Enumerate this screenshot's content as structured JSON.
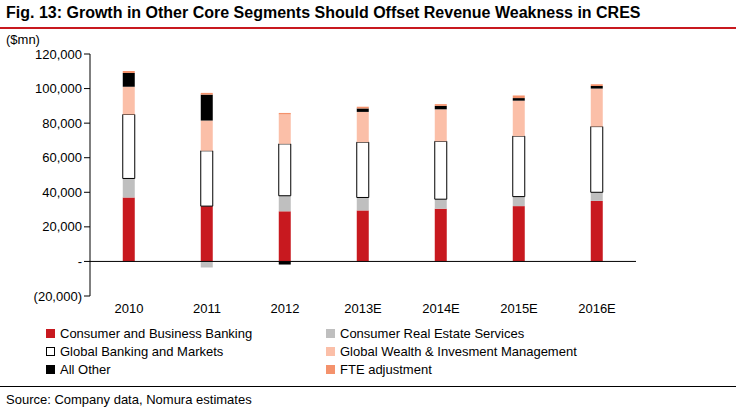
{
  "chart_data": {
    "type": "bar",
    "title": "Fig. 13: Growth in Other Core Segments Should Offset Revenue Weakness in CRES",
    "subtitle": "($mn)",
    "source": "Source: Company data, Nomura estimates",
    "stacked": true,
    "grid": false,
    "legend": "bottom",
    "categories": [
      "2010",
      "2011",
      "2012",
      "2013E",
      "2014E",
      "2015E",
      "2016E"
    ],
    "ylim": [
      -20000,
      120000
    ],
    "yticks": [
      {
        "value": -20000,
        "label": "(20,000)"
      },
      {
        "value": 0,
        "label": "-"
      },
      {
        "value": 20000,
        "label": "20,000"
      },
      {
        "value": 40000,
        "label": "40,000"
      },
      {
        "value": 60000,
        "label": "60,000"
      },
      {
        "value": 80000,
        "label": "80,000"
      },
      {
        "value": 100000,
        "label": "100,000"
      },
      {
        "value": 120000,
        "label": "120,000"
      }
    ],
    "series": [
      {
        "name": "Consumer and Business Banking",
        "color": "#c8191f",
        "values": [
          37000,
          32000,
          29000,
          29500,
          30500,
          32000,
          35000
        ]
      },
      {
        "name": "Consumer Real Estate Services",
        "color": "#bfbfbf",
        "values": [
          11000,
          -3500,
          9000,
          7500,
          5500,
          5500,
          5000
        ]
      },
      {
        "name": "Global Banking and Markets",
        "color": "#ffffff",
        "values": [
          37000,
          32000,
          30000,
          32000,
          33500,
          35000,
          38000
        ]
      },
      {
        "name": "Global Wealth & Invesment Management",
        "color": "#fbbfa8",
        "values": [
          16000,
          17500,
          17000,
          17500,
          18500,
          20500,
          22000
        ]
      },
      {
        "name": "All Other",
        "color": "#000000",
        "values": [
          8000,
          15000,
          -1800,
          2000,
          2000,
          1500,
          1500
        ]
      },
      {
        "name": "FTE adjustment",
        "color": "#f4926c",
        "values": [
          1200,
          1000,
          900,
          1000,
          1000,
          1500,
          1000
        ]
      }
    ]
  }
}
